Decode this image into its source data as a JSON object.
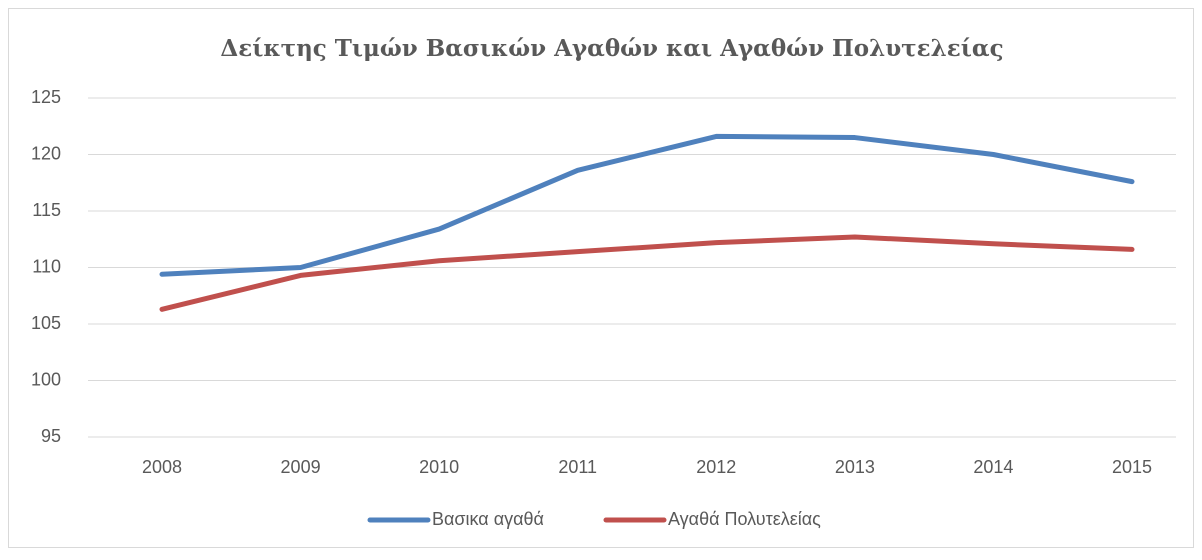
{
  "chart_data": {
    "type": "line",
    "title": "Δείκτης Τιμών Βασικών Αγαθών και Αγαθών Πολυτελείας",
    "categories": [
      "2008",
      "2009",
      "2010",
      "2011",
      "2012",
      "2013",
      "2014",
      "2015"
    ],
    "series": [
      {
        "name": "Βασικα αγαθά",
        "color": "#4f81bd",
        "values": [
          109.4,
          110.0,
          113.4,
          118.6,
          121.6,
          121.5,
          120.0,
          117.6
        ]
      },
      {
        "name": "Αγαθά Πολυτελείας",
        "color": "#c0504d",
        "values": [
          106.3,
          109.3,
          110.6,
          111.4,
          112.2,
          112.7,
          112.1,
          111.6
        ]
      }
    ],
    "ylim": [
      95,
      125
    ],
    "yticks": [
      95,
      100,
      105,
      110,
      115,
      120,
      125
    ],
    "grid": true,
    "legend": "bottom"
  }
}
